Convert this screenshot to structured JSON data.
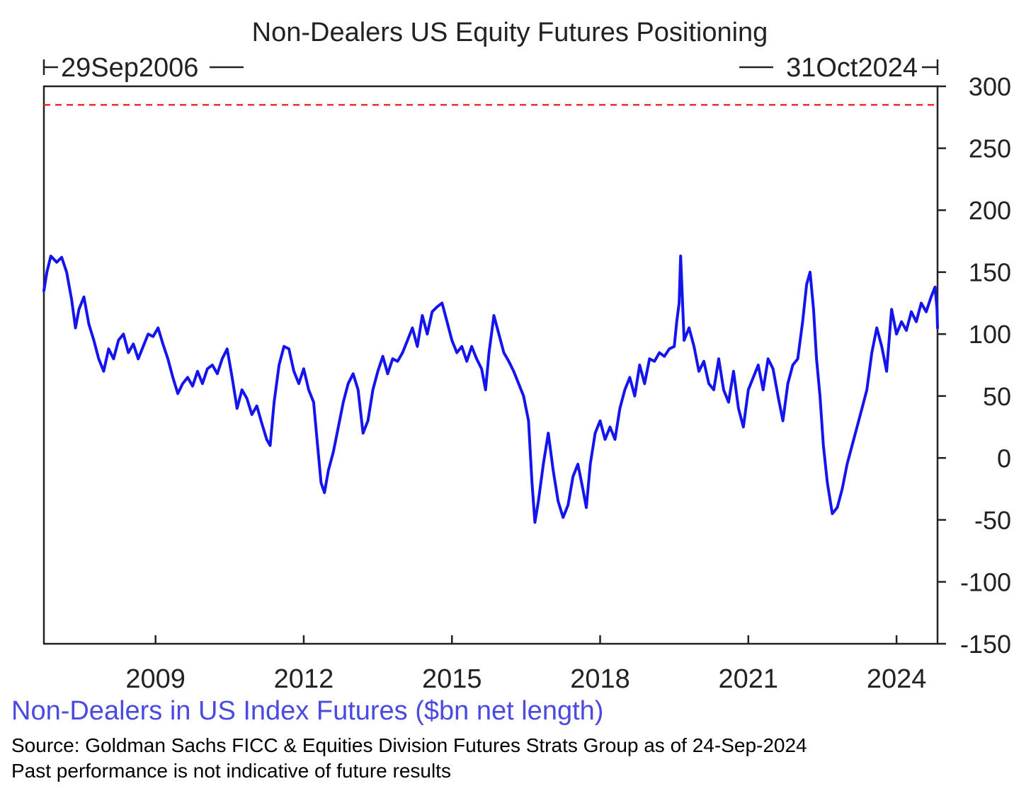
{
  "chart_data": {
    "type": "line",
    "title": "Non-Dealers US Equity Futures Positioning",
    "date_range": {
      "start_label": "29Sep2006",
      "end_label": "31Oct2024"
    },
    "xlabel": "",
    "ylabel": "",
    "x_tick_labels": [
      "2009",
      "2012",
      "2015",
      "2018",
      "2021",
      "2024"
    ],
    "x_range": [
      2006.74,
      2024.83
    ],
    "y_tick_labels": [
      "300",
      "250",
      "200",
      "150",
      "100",
      "50",
      "0",
      "-50",
      "-100",
      "-150"
    ],
    "ylim": [
      -150,
      300
    ],
    "y_axis_side": "right",
    "grid": false,
    "reference_line": {
      "value": 285,
      "color": "#e83030",
      "style": "dashed"
    },
    "series": [
      {
        "name": "Non-Dealers in US Index Futures ($bn net length)",
        "color": "#1414ee",
        "points": [
          [
            2006.74,
            135
          ],
          [
            2006.8,
            150
          ],
          [
            2006.88,
            163
          ],
          [
            2007.0,
            158
          ],
          [
            2007.1,
            162
          ],
          [
            2007.2,
            150
          ],
          [
            2007.3,
            128
          ],
          [
            2007.38,
            105
          ],
          [
            2007.45,
            120
          ],
          [
            2007.55,
            130
          ],
          [
            2007.65,
            108
          ],
          [
            2007.75,
            95
          ],
          [
            2007.85,
            80
          ],
          [
            2007.95,
            70
          ],
          [
            2008.05,
            88
          ],
          [
            2008.15,
            80
          ],
          [
            2008.25,
            95
          ],
          [
            2008.35,
            100
          ],
          [
            2008.45,
            85
          ],
          [
            2008.55,
            92
          ],
          [
            2008.65,
            80
          ],
          [
            2008.75,
            90
          ],
          [
            2008.85,
            100
          ],
          [
            2008.95,
            98
          ],
          [
            2009.05,
            105
          ],
          [
            2009.15,
            92
          ],
          [
            2009.25,
            80
          ],
          [
            2009.35,
            65
          ],
          [
            2009.45,
            52
          ],
          [
            2009.55,
            60
          ],
          [
            2009.65,
            65
          ],
          [
            2009.75,
            58
          ],
          [
            2009.85,
            70
          ],
          [
            2009.95,
            60
          ],
          [
            2010.05,
            72
          ],
          [
            2010.15,
            75
          ],
          [
            2010.25,
            68
          ],
          [
            2010.35,
            80
          ],
          [
            2010.45,
            88
          ],
          [
            2010.55,
            65
          ],
          [
            2010.65,
            40
          ],
          [
            2010.75,
            55
          ],
          [
            2010.85,
            48
          ],
          [
            2010.95,
            35
          ],
          [
            2011.05,
            42
          ],
          [
            2011.15,
            28
          ],
          [
            2011.25,
            15
          ],
          [
            2011.32,
            10
          ],
          [
            2011.4,
            45
          ],
          [
            2011.5,
            75
          ],
          [
            2011.6,
            90
          ],
          [
            2011.7,
            88
          ],
          [
            2011.8,
            70
          ],
          [
            2011.9,
            60
          ],
          [
            2012.0,
            72
          ],
          [
            2012.1,
            55
          ],
          [
            2012.2,
            45
          ],
          [
            2012.28,
            10
          ],
          [
            2012.35,
            -20
          ],
          [
            2012.42,
            -28
          ],
          [
            2012.5,
            -10
          ],
          [
            2012.6,
            5
          ],
          [
            2012.7,
            25
          ],
          [
            2012.8,
            45
          ],
          [
            2012.9,
            60
          ],
          [
            2013.0,
            68
          ],
          [
            2013.1,
            55
          ],
          [
            2013.2,
            20
          ],
          [
            2013.3,
            30
          ],
          [
            2013.4,
            55
          ],
          [
            2013.5,
            70
          ],
          [
            2013.6,
            82
          ],
          [
            2013.7,
            68
          ],
          [
            2013.8,
            80
          ],
          [
            2013.9,
            78
          ],
          [
            2014.0,
            85
          ],
          [
            2014.1,
            95
          ],
          [
            2014.2,
            105
          ],
          [
            2014.3,
            90
          ],
          [
            2014.4,
            115
          ],
          [
            2014.5,
            100
          ],
          [
            2014.6,
            118
          ],
          [
            2014.7,
            122
          ],
          [
            2014.8,
            125
          ],
          [
            2014.9,
            110
          ],
          [
            2015.0,
            95
          ],
          [
            2015.1,
            85
          ],
          [
            2015.2,
            90
          ],
          [
            2015.3,
            78
          ],
          [
            2015.4,
            90
          ],
          [
            2015.5,
            80
          ],
          [
            2015.6,
            72
          ],
          [
            2015.68,
            55
          ],
          [
            2015.75,
            85
          ],
          [
            2015.85,
            115
          ],
          [
            2015.95,
            100
          ],
          [
            2016.05,
            85
          ],
          [
            2016.15,
            78
          ],
          [
            2016.25,
            70
          ],
          [
            2016.35,
            60
          ],
          [
            2016.45,
            50
          ],
          [
            2016.55,
            30
          ],
          [
            2016.62,
            -20
          ],
          [
            2016.68,
            -52
          ],
          [
            2016.75,
            -35
          ],
          [
            2016.85,
            -5
          ],
          [
            2016.95,
            20
          ],
          [
            2017.05,
            -10
          ],
          [
            2017.15,
            -35
          ],
          [
            2017.25,
            -48
          ],
          [
            2017.35,
            -38
          ],
          [
            2017.45,
            -15
          ],
          [
            2017.55,
            -5
          ],
          [
            2017.65,
            -25
          ],
          [
            2017.72,
            -40
          ],
          [
            2017.8,
            -5
          ],
          [
            2017.9,
            20
          ],
          [
            2018.0,
            30
          ],
          [
            2018.1,
            15
          ],
          [
            2018.2,
            25
          ],
          [
            2018.3,
            15
          ],
          [
            2018.4,
            40
          ],
          [
            2018.5,
            55
          ],
          [
            2018.6,
            65
          ],
          [
            2018.7,
            50
          ],
          [
            2018.8,
            75
          ],
          [
            2018.9,
            60
          ],
          [
            2019.0,
            80
          ],
          [
            2019.1,
            78
          ],
          [
            2019.2,
            85
          ],
          [
            2019.3,
            82
          ],
          [
            2019.4,
            88
          ],
          [
            2019.5,
            90
          ],
          [
            2019.55,
            110
          ],
          [
            2019.6,
            125
          ],
          [
            2019.63,
            163
          ],
          [
            2019.7,
            95
          ],
          [
            2019.8,
            105
          ],
          [
            2019.9,
            90
          ],
          [
            2020.0,
            70
          ],
          [
            2020.1,
            78
          ],
          [
            2020.2,
            60
          ],
          [
            2020.3,
            55
          ],
          [
            2020.4,
            80
          ],
          [
            2020.5,
            55
          ],
          [
            2020.6,
            45
          ],
          [
            2020.7,
            70
          ],
          [
            2020.8,
            40
          ],
          [
            2020.9,
            25
          ],
          [
            2021.0,
            55
          ],
          [
            2021.1,
            65
          ],
          [
            2021.2,
            75
          ],
          [
            2021.3,
            55
          ],
          [
            2021.4,
            80
          ],
          [
            2021.5,
            72
          ],
          [
            2021.6,
            50
          ],
          [
            2021.7,
            30
          ],
          [
            2021.8,
            60
          ],
          [
            2021.9,
            75
          ],
          [
            2022.0,
            80
          ],
          [
            2022.1,
            110
          ],
          [
            2022.18,
            140
          ],
          [
            2022.25,
            150
          ],
          [
            2022.32,
            120
          ],
          [
            2022.38,
            80
          ],
          [
            2022.45,
            50
          ],
          [
            2022.52,
            10
          ],
          [
            2022.6,
            -20
          ],
          [
            2022.7,
            -45
          ],
          [
            2022.8,
            -40
          ],
          [
            2022.9,
            -25
          ],
          [
            2023.0,
            -5
          ],
          [
            2023.1,
            10
          ],
          [
            2023.2,
            25
          ],
          [
            2023.3,
            40
          ],
          [
            2023.4,
            55
          ],
          [
            2023.5,
            85
          ],
          [
            2023.6,
            105
          ],
          [
            2023.7,
            90
          ],
          [
            2023.8,
            70
          ],
          [
            2023.9,
            120
          ],
          [
            2024.0,
            100
          ],
          [
            2024.1,
            110
          ],
          [
            2024.2,
            103
          ],
          [
            2024.3,
            118
          ],
          [
            2024.4,
            110
          ],
          [
            2024.5,
            125
          ],
          [
            2024.6,
            118
          ],
          [
            2024.7,
            130
          ],
          [
            2024.78,
            138
          ],
          [
            2024.82,
            120
          ],
          [
            2024.83,
            105
          ]
        ]
      }
    ]
  },
  "footer": {
    "legend_label": "Non-Dealers in US Index Futures ($bn net length)",
    "source_note": "Source: Goldman Sachs FICC & Equities Division Futures Strats Group as of 24-Sep-2024",
    "disclaimer": "Past performance is not indicative of future results"
  },
  "colors": {
    "line": "#1414ee",
    "reference_line": "#e83030",
    "legend_text": "#4a4ae0",
    "axes": "#222222"
  }
}
